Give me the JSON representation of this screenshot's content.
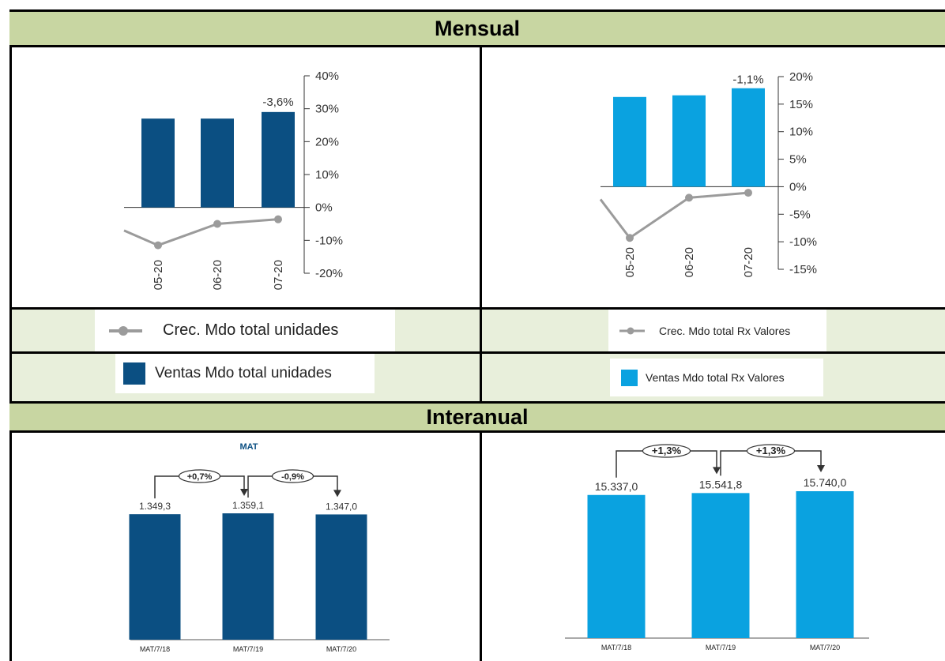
{
  "sections": {
    "monthly_title": "Mensual",
    "annual_title": "Interanual"
  },
  "legends": {
    "units_line": "Crec. Mdo total unidades",
    "units_bar": "Ventas Mdo total unidades",
    "values_line": "Crec. Mdo total Rx Valores",
    "values_bar": "Ventas Mdo total Rx Valores"
  },
  "colors": {
    "dark_blue": "#0b4f82",
    "light_blue": "#0aa2e0",
    "line_gray": "#9b9b9b",
    "header_green": "#c8d6a2",
    "legend_bg": "#e8efdb"
  },
  "chart_data": [
    {
      "type": "bar",
      "id": "monthly_units",
      "categories": [
        "05-20",
        "06-20",
        "07-20"
      ],
      "y_axis_ticks": [
        "40%",
        "30%",
        "20%",
        "10%",
        "0%",
        "-10%",
        "-20%"
      ],
      "ylim": [
        -20,
        40
      ],
      "series": [
        {
          "name": "Ventas Mdo total unidades",
          "type": "bar",
          "values": [
            27,
            27,
            29
          ],
          "color": "#0b4f82"
        },
        {
          "name": "Crec. Mdo total unidades",
          "type": "line",
          "values": [
            -11.5,
            -5,
            -3.6
          ],
          "color": "#9b9b9b"
        }
      ],
      "annotations": [
        {
          "category": "07-20",
          "text": "-3,6%"
        }
      ]
    },
    {
      "type": "bar",
      "id": "monthly_values",
      "categories": [
        "05-20",
        "06-20",
        "07-20"
      ],
      "y_axis_ticks": [
        "20%",
        "15%",
        "10%",
        "5%",
        "0%",
        "-5%",
        "-10%",
        "-15%"
      ],
      "ylim": [
        -15,
        20
      ],
      "series": [
        {
          "name": "Ventas Mdo total Rx Valores",
          "type": "bar",
          "values": [
            16.3,
            16.6,
            17.9
          ],
          "color": "#0aa2e0"
        },
        {
          "name": "Crec. Mdo total Rx Valores",
          "type": "line",
          "values": [
            -9.3,
            -2,
            -1.1
          ],
          "color": "#9b9b9b"
        }
      ],
      "annotations": [
        {
          "category": "07-20",
          "text": "-1,1%"
        }
      ]
    },
    {
      "type": "bar",
      "id": "annual_units",
      "title": "MAT",
      "categories": [
        "MAT/7/18",
        "MAT/7/19",
        "MAT/7/20"
      ],
      "values": [
        1349.3,
        1359.1,
        1347.0
      ],
      "value_labels": [
        "1.349,3",
        "1.359,1",
        "1.347,0"
      ],
      "changes": [
        "+0,7%",
        "-0,9%"
      ],
      "color": "#0b4f82"
    },
    {
      "type": "bar",
      "id": "annual_values",
      "categories": [
        "MAT/7/18",
        "MAT/7/19",
        "MAT/7/20"
      ],
      "values": [
        15337.0,
        15541.8,
        15740.0
      ],
      "value_labels": [
        "15.337,0",
        "15.541,8",
        "15.740,0"
      ],
      "changes": [
        "+1,3%",
        "+1,3%"
      ],
      "color": "#0aa2e0"
    }
  ]
}
